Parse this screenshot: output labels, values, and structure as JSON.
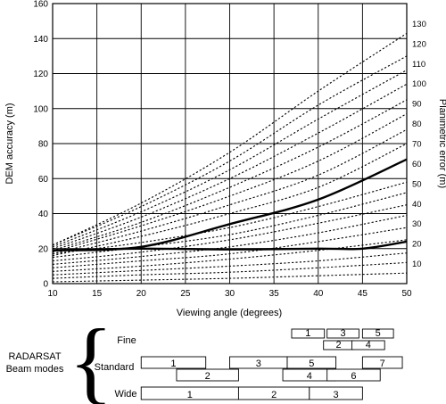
{
  "chart_data": {
    "type": "line",
    "xlabel": "Viewing angle (degrees)",
    "ylabel": "DEM accuracy (m)",
    "y2label": "Planimetric error (m)",
    "xlim": [
      10,
      50
    ],
    "ylim": [
      0,
      160
    ],
    "x_ticks": [
      "10",
      "15",
      "20",
      "25",
      "30",
      "35",
      "40",
      "45",
      "50"
    ],
    "y_ticks": [
      "0",
      "20",
      "40",
      "60",
      "80",
      "100",
      "120",
      "140",
      "160"
    ],
    "y2_ticks": [
      "10",
      "20",
      "30",
      "40",
      "50",
      "60",
      "70",
      "80",
      "90",
      "100",
      "110",
      "120",
      "130"
    ],
    "grid": true,
    "series": [
      {
        "style": "dotted",
        "values": [
          [
            10,
            1
          ],
          [
            20,
            2
          ],
          [
            30,
            3
          ],
          [
            40,
            4.5
          ],
          [
            50,
            6
          ]
        ]
      },
      {
        "style": "dotted",
        "values": [
          [
            10,
            3
          ],
          [
            20,
            5
          ],
          [
            30,
            6.5
          ],
          [
            40,
            9
          ],
          [
            50,
            12
          ]
        ]
      },
      {
        "style": "dotted",
        "values": [
          [
            10,
            5
          ],
          [
            20,
            7.5
          ],
          [
            30,
            10
          ],
          [
            40,
            13
          ],
          [
            50,
            17.5
          ]
        ]
      },
      {
        "style": "solid",
        "values": [
          [
            10,
            19
          ],
          [
            20,
            20
          ],
          [
            30,
            19.5
          ],
          [
            40,
            20
          ],
          [
            45,
            20
          ],
          [
            50,
            24
          ]
        ]
      },
      {
        "style": "dotted",
        "values": [
          [
            10,
            7
          ],
          [
            20,
            10
          ],
          [
            30,
            14
          ],
          [
            40,
            19
          ],
          [
            50,
            25
          ]
        ]
      },
      {
        "style": "dotted",
        "values": [
          [
            10,
            9
          ],
          [
            20,
            13
          ],
          [
            30,
            17
          ],
          [
            40,
            24
          ],
          [
            50,
            32
          ]
        ]
      },
      {
        "style": "dotted",
        "values": [
          [
            10,
            11
          ],
          [
            20,
            15.5
          ],
          [
            30,
            21
          ],
          [
            40,
            29
          ],
          [
            50,
            39
          ]
        ]
      },
      {
        "style": "dotted",
        "values": [
          [
            10,
            13
          ],
          [
            20,
            18
          ],
          [
            30,
            25
          ],
          [
            40,
            34.5
          ],
          [
            50,
            45
          ]
        ]
      },
      {
        "style": "dotted",
        "values": [
          [
            10,
            15
          ],
          [
            20,
            21
          ],
          [
            30,
            28
          ],
          [
            40,
            39
          ],
          [
            50,
            52
          ]
        ]
      },
      {
        "style": "dotted",
        "values": [
          [
            10,
            17
          ],
          [
            20,
            23.5
          ],
          [
            30,
            32
          ],
          [
            40,
            44
          ],
          [
            50,
            58
          ]
        ]
      },
      {
        "style": "solid",
        "values": [
          [
            10,
            19
          ],
          [
            20,
            21
          ],
          [
            30,
            34
          ],
          [
            40,
            48
          ],
          [
            50,
            71
          ]
        ]
      },
      {
        "style": "dotted",
        "values": [
          [
            10,
            16
          ],
          [
            20,
            27
          ],
          [
            30,
            40
          ],
          [
            40,
            55
          ],
          [
            50,
            80
          ]
        ]
      },
      {
        "style": "dotted",
        "values": [
          [
            10,
            17
          ],
          [
            20,
            30
          ],
          [
            30,
            45
          ],
          [
            40,
            62
          ],
          [
            50,
            88
          ]
        ]
      },
      {
        "style": "dotted",
        "values": [
          [
            10,
            18
          ],
          [
            20,
            33
          ],
          [
            30,
            50
          ],
          [
            40,
            70
          ],
          [
            50,
            97
          ]
        ]
      },
      {
        "style": "dotted",
        "values": [
          [
            10,
            19
          ],
          [
            20,
            35
          ],
          [
            30,
            55
          ],
          [
            40,
            78
          ],
          [
            50,
            105
          ]
        ]
      },
      {
        "style": "dotted",
        "values": [
          [
            10,
            20
          ],
          [
            20,
            38
          ],
          [
            30,
            60
          ],
          [
            40,
            86
          ],
          [
            50,
            114
          ]
        ]
      },
      {
        "style": "dotted",
        "values": [
          [
            10,
            21
          ],
          [
            20,
            41
          ],
          [
            30,
            65
          ],
          [
            40,
            94
          ],
          [
            50,
            122
          ]
        ]
      },
      {
        "style": "dotted",
        "values": [
          [
            10,
            22
          ],
          [
            20,
            44
          ],
          [
            30,
            70
          ],
          [
            40,
            102
          ],
          [
            50,
            130
          ]
        ]
      },
      {
        "style": "dotted",
        "values": [
          [
            10,
            22
          ],
          [
            20,
            46
          ],
          [
            30,
            75
          ],
          [
            40,
            110
          ],
          [
            50,
            143
          ]
        ]
      }
    ]
  },
  "beam_modes": {
    "title_line1": "RADARSAT",
    "title_line2": "Beam modes",
    "brace": "{",
    "fine": {
      "label": "Fine",
      "beams": [
        {
          "label": "1",
          "x0": 37,
          "x1": 40.7
        },
        {
          "label": "2",
          "x0": 40.6,
          "x1": 44
        },
        {
          "label": "3",
          "x0": 41,
          "x1": 44.6
        },
        {
          "label": "4",
          "x0": 43.8,
          "x1": 47.5
        },
        {
          "label": "5",
          "x0": 45,
          "x1": 48.5
        }
      ]
    },
    "standard": {
      "label": "Standard",
      "beams": [
        {
          "label": "1",
          "x0": 20,
          "x1": 27.3
        },
        {
          "label": "2",
          "x0": 24,
          "x1": 31
        },
        {
          "label": "3",
          "x0": 30,
          "x1": 36.5
        },
        {
          "label": "4",
          "x0": 36,
          "x1": 42
        },
        {
          "label": "5",
          "x0": 36.5,
          "x1": 42
        },
        {
          "label": "6",
          "x0": 41,
          "x1": 47
        },
        {
          "label": "7",
          "x0": 45,
          "x1": 49.5
        }
      ]
    },
    "wide": {
      "label": "Wide",
      "beams": [
        {
          "label": "1",
          "x0": 20,
          "x1": 31
        },
        {
          "label": "2",
          "x0": 31,
          "x1": 39
        },
        {
          "label": "3",
          "x0": 39,
          "x1": 45
        }
      ]
    }
  }
}
